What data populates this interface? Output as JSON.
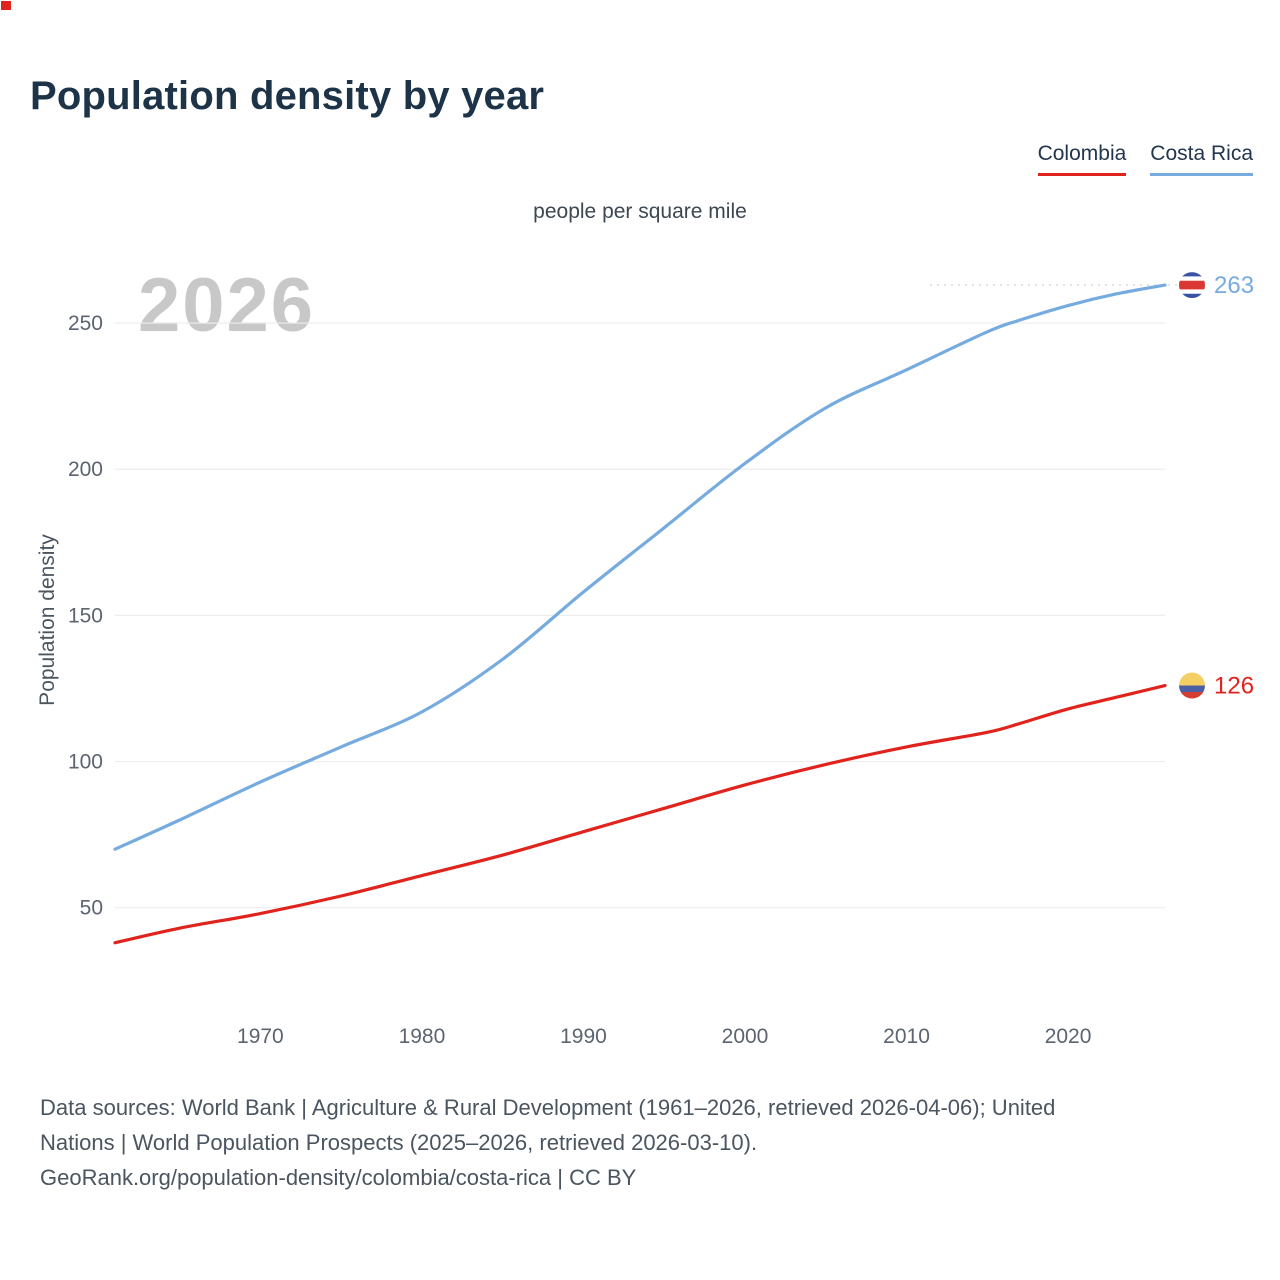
{
  "page": {
    "title": "Population density by year",
    "subtitle": "people per square mile",
    "watermark": "2026",
    "y_axis_label": "Population density"
  },
  "legend": [
    {
      "label": "Colombia",
      "color": "#e0231c"
    },
    {
      "label": "Costa Rica",
      "color": "#76abe0"
    }
  ],
  "chart_data": {
    "type": "line",
    "title": "Population density by year",
    "subtitle": "people per square mile",
    "xlabel": "",
    "ylabel": "Population density",
    "unit": "people per square mile",
    "current_year": "2026",
    "x": [
      1961,
      1965,
      1970,
      1975,
      1980,
      1985,
      1990,
      1995,
      2000,
      2005,
      2010,
      2015,
      2017,
      2020,
      2023,
      2026
    ],
    "series": [
      {
        "name": "Colombia",
        "color": "#e0231c",
        "end_value": 126,
        "values": [
          38,
          43,
          48,
          54,
          61,
          68,
          76,
          84,
          92,
          99,
          105,
          110,
          113,
          118,
          122,
          126
        ],
        "flag_stripes": [
          {
            "color": "#f4cf63",
            "h": 0.5
          },
          {
            "color": "#4a5fa5",
            "h": 0.25
          },
          {
            "color": "#d63c32",
            "h": 0.25
          }
        ]
      },
      {
        "name": "Costa Rica",
        "color": "#76abe0",
        "end_value": 263,
        "values": [
          70,
          80,
          93,
          105,
          117,
          135,
          158,
          180,
          202,
          221,
          234,
          247,
          251,
          256,
          260,
          263
        ],
        "flag_stripes": [
          {
            "color": "#3a53a4",
            "h": 0.1667
          },
          {
            "color": "#ffffff",
            "h": 0.1667
          },
          {
            "color": "#da3832",
            "h": 0.3333
          },
          {
            "color": "#ffffff",
            "h": 0.1667
          },
          {
            "color": "#3a53a4",
            "h": 0.1667
          }
        ]
      }
    ],
    "xlim": [
      1961,
      2026
    ],
    "ylim": [
      15,
      275
    ],
    "x_ticks": [
      1970,
      1980,
      1990,
      2000,
      2010,
      2020
    ],
    "y_ticks": [
      50,
      100,
      150,
      200,
      250
    ],
    "grid": true,
    "legend_position": "top-right"
  },
  "footer": {
    "line1": "Data sources: World Bank | Agriculture & Rural Development (1961–2026, retrieved 2026-04-06); United",
    "line2": "Nations | World Population Prospects (2025–2026, retrieved 2026-03-10).",
    "line3": "GeoRank.org/population-density/colombia/costa-rica | CC BY"
  }
}
